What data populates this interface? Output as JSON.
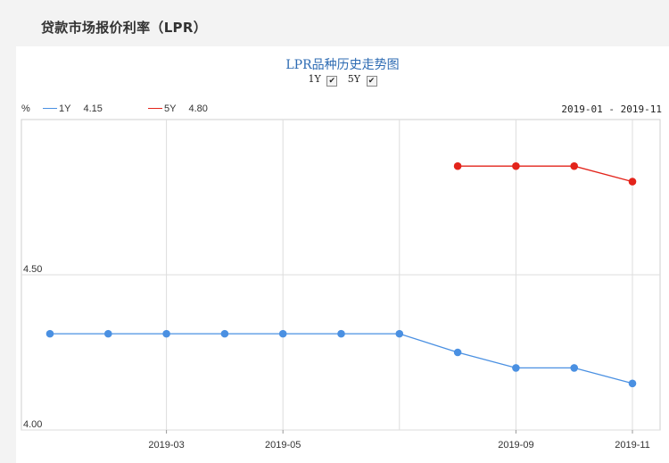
{
  "page": {
    "section_title": "贷款市场报价利率（LPR）"
  },
  "chart_data": {
    "type": "line",
    "title": "LPR品种历史走势图",
    "unit": "%",
    "date_range": "2019-01 - 2019-11",
    "toggles": [
      {
        "label": "1Y",
        "checked": "✔"
      },
      {
        "label": "5Y",
        "checked": "✔"
      }
    ],
    "x": [
      "2019-01",
      "2019-02",
      "2019-03",
      "2019-04",
      "2019-05",
      "2019-06",
      "2019-07",
      "2019-08",
      "2019-09",
      "2019-10",
      "2019-11"
    ],
    "x_tick_labels": [
      "2019-03",
      "2019-05",
      "2019-09",
      "2019-11"
    ],
    "y_tick_labels": [
      "4.50",
      "4.00"
    ],
    "y_range": [
      4.0,
      5.0
    ],
    "grid": true,
    "series": [
      {
        "name": "1Y",
        "latest": "4.15",
        "color": "#4a90e2",
        "values": [
          4.31,
          4.31,
          4.31,
          4.31,
          4.31,
          4.31,
          4.31,
          4.25,
          4.2,
          4.2,
          4.15
        ]
      },
      {
        "name": "5Y",
        "latest": "4.80",
        "color": "#e3241b",
        "values": [
          null,
          null,
          null,
          null,
          null,
          null,
          null,
          4.85,
          4.85,
          4.85,
          4.8
        ]
      }
    ]
  }
}
